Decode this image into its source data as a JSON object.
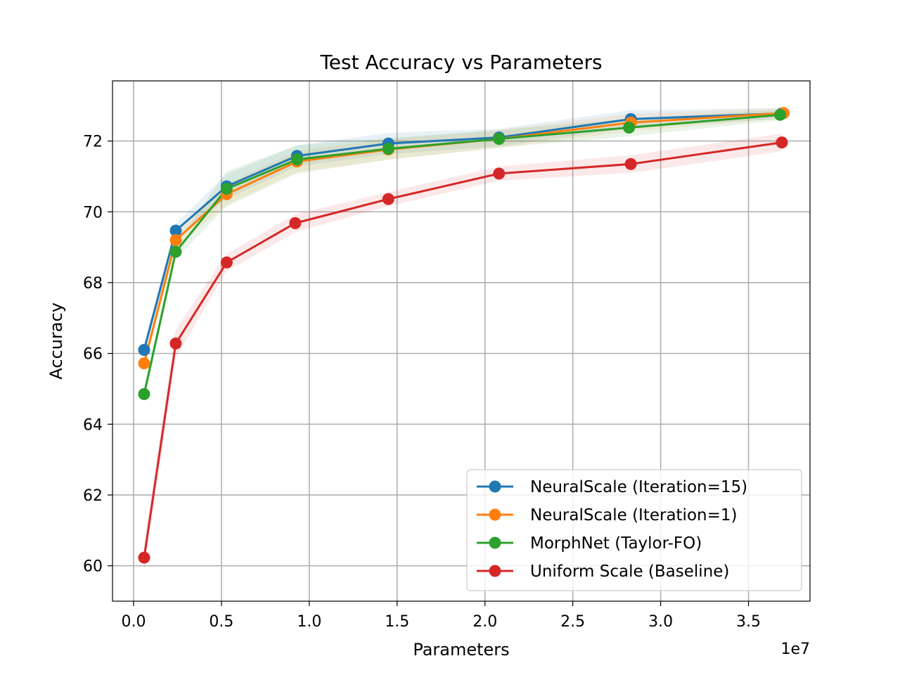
{
  "chart_data": {
    "type": "line",
    "title": "Test Accuracy vs Parameters",
    "xlabel": "Parameters",
    "ylabel": "Accuracy",
    "x_offset_label": "1e7",
    "xlim": [
      -1200000,
      38500000
    ],
    "ylim": [
      59.0,
      73.7
    ],
    "x_ticks": [
      0,
      5000000,
      10000000,
      15000000,
      20000000,
      25000000,
      30000000,
      35000000
    ],
    "x_tick_labels": [
      "0.0",
      "0.5",
      "1.0",
      "1.5",
      "2.0",
      "2.5",
      "3.0",
      "3.5"
    ],
    "y_ticks": [
      60,
      62,
      64,
      66,
      68,
      70,
      72
    ],
    "y_tick_labels": [
      "60",
      "62",
      "64",
      "66",
      "68",
      "70",
      "72"
    ],
    "grid": true,
    "legend_position": "lower-right",
    "series": [
      {
        "name": "NeuralScale (Iteration=15)",
        "color": "#1f77b4",
        "x": [
          600000,
          2400000,
          5300000,
          9300000,
          14500000,
          20800000,
          28300000,
          36900000
        ],
        "y": [
          66.1,
          69.47,
          70.72,
          71.58,
          71.93,
          72.1,
          72.62,
          72.78
        ],
        "band": [
          0.2,
          0.2,
          0.35,
          0.3,
          0.3,
          0.25,
          0.25,
          0.15
        ]
      },
      {
        "name": "NeuralScale (Iteration=1)",
        "color": "#ff7f0e",
        "x": [
          600000,
          2400000,
          5300000,
          9300000,
          14500000,
          20800000,
          28300000,
          37000000
        ],
        "y": [
          65.72,
          69.2,
          70.5,
          71.42,
          71.76,
          72.06,
          72.52,
          72.79
        ],
        "band": [
          0.2,
          0.2,
          0.3,
          0.3,
          0.3,
          0.25,
          0.25,
          0.15
        ]
      },
      {
        "name": "MorphNet (Taylor-FO)",
        "color": "#2ca02c",
        "x": [
          600000,
          2400000,
          5300000,
          9300000,
          14500000,
          20800000,
          28200000,
          36800000
        ],
        "y": [
          64.85,
          68.87,
          70.65,
          71.48,
          71.78,
          72.06,
          72.38,
          72.74
        ],
        "band": [
          0.2,
          0.2,
          0.5,
          0.4,
          0.3,
          0.25,
          0.25,
          0.15
        ]
      },
      {
        "name": "Uniform Scale (Baseline)",
        "color": "#d62728",
        "x": [
          600000,
          2400000,
          5300000,
          9200000,
          14500000,
          20800000,
          28300000,
          36900000
        ],
        "y": [
          60.23,
          66.28,
          68.57,
          69.68,
          70.36,
          71.08,
          71.35,
          71.96
        ],
        "band": [
          0.4,
          0.4,
          0.25,
          0.25,
          0.2,
          0.2,
          0.25,
          0.25
        ]
      }
    ]
  }
}
